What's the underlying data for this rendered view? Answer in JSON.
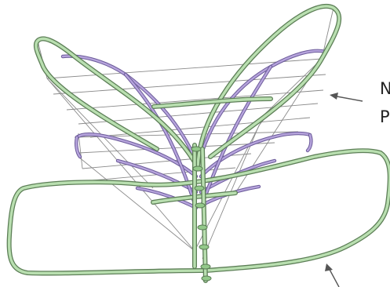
{
  "callouts": {
    "line_1": "N",
    "line_2": "P"
  },
  "colors": {
    "green_fill": "#b9dfb0",
    "green_edge": "#5d7f57",
    "green_mid": "#93c98a",
    "purple_fill": "#b6a4dc",
    "purple_edge": "#6b5a99",
    "wire": "#8a8a8a",
    "arrow": "#555555"
  }
}
